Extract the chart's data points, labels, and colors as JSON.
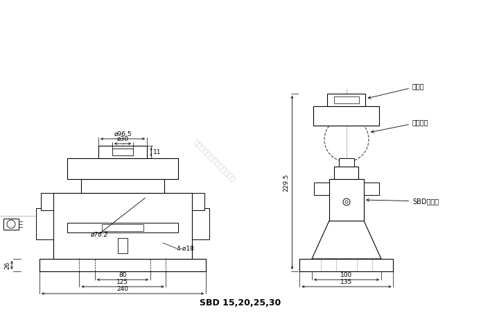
{
  "bg_color": "#ffffff",
  "line_color": "#000000",
  "title": "SBD 15,20,25,30",
  "annotations": {
    "phi96_5": "ø96.5",
    "phi30": "ø30",
    "t1": "11",
    "phi76_2": "ø76.2",
    "four_phi18": "4-ø18",
    "dim26": "26",
    "dim80": "80",
    "dim125": "125",
    "dim240": "240",
    "dim229_5": "229.5",
    "dim100": "100",
    "dim135": "135",
    "label_head": "承压头",
    "label_ball": "加载锂球",
    "label_sensor": "SBD传感器"
  },
  "watermark": "广州依鑫自动化科技有限公司"
}
